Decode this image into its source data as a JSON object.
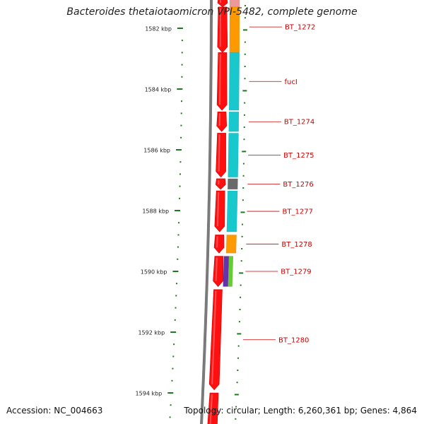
{
  "title": "Bacteroides thetaiotaomicron VPI-5482, complete genome",
  "footer": {
    "accession": "Accession: NC_004663",
    "summary": "Topology: circular; Length: 6,260,361 bp; Genes: 4,864"
  },
  "colors": {
    "scale": "#1e7a1e",
    "gene_red": "#ff1010",
    "label": "#cc0000",
    "backbone": "#7a7a7a",
    "cog_orange": "#ff9900",
    "cog_cyan": "#18c8cc",
    "cog_gray": "#6a6a6a",
    "cog_purple": "#6633aa",
    "cog_green": "#66cc33",
    "cog_pink": "#ee9999"
  },
  "scale_ticks": [
    {
      "label": "1582 kbp",
      "kbp": 1582
    },
    {
      "label": "1584 kbp",
      "kbp": 1584
    },
    {
      "label": "1586 kbp",
      "kbp": 1586
    },
    {
      "label": "1588 kbp",
      "kbp": 1588
    },
    {
      "label": "1590 kbp",
      "kbp": 1590
    },
    {
      "label": "1592 kbp",
      "kbp": 1592
    },
    {
      "label": "1594 kbp",
      "kbp": 1594
    }
  ],
  "genes": [
    {
      "id": "partial-top",
      "label": "",
      "start_kbp": 1581.0,
      "end_kbp": 1581.3,
      "strand": "-",
      "cog": "pink"
    },
    {
      "id": "bt-1272",
      "label": "BT_1272",
      "start_kbp": 1581.3,
      "end_kbp": 1582.8,
      "strand": "-",
      "cog": "orange"
    },
    {
      "id": "fucl",
      "label": "fucI",
      "start_kbp": 1582.8,
      "end_kbp": 1584.7,
      "strand": "-",
      "cog": "cyan"
    },
    {
      "id": "bt-1274",
      "label": "BT_1274",
      "start_kbp": 1584.75,
      "end_kbp": 1585.4,
      "strand": "-",
      "cog": "cyan"
    },
    {
      "id": "bt-1275",
      "label": "BT_1275",
      "start_kbp": 1585.45,
      "end_kbp": 1586.9,
      "strand": "-",
      "cog": "cyan"
    },
    {
      "id": "bt-1276",
      "label": "BT_1276",
      "start_kbp": 1586.95,
      "end_kbp": 1587.3,
      "strand": "-",
      "cog": "gray"
    },
    {
      "id": "bt-1277",
      "label": "BT_1277",
      "start_kbp": 1587.35,
      "end_kbp": 1588.7,
      "strand": "-",
      "cog": "cyan"
    },
    {
      "id": "bt-1278",
      "label": "BT_1278",
      "start_kbp": 1588.8,
      "end_kbp": 1589.4,
      "strand": "-",
      "cog": "orange"
    },
    {
      "id": "bt-1279",
      "label": "BT_1279",
      "start_kbp": 1589.5,
      "end_kbp": 1590.5,
      "strand": "-",
      "cog": "purple-green"
    },
    {
      "id": "bt-1280",
      "label": "BT_1280",
      "start_kbp": 1590.6,
      "end_kbp": 1593.9,
      "strand": "-",
      "cog": "none"
    },
    {
      "id": "partial-bottom",
      "label": "",
      "start_kbp": 1594.0,
      "end_kbp": 1595.5,
      "strand": "-",
      "cog": "none"
    }
  ]
}
